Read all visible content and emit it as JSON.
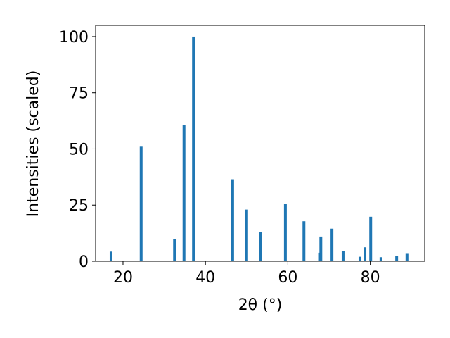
{
  "chart_data": {
    "type": "bar",
    "x_label": "2θ (°)",
    "y_label": "Intensities (scaled)",
    "x": [
      17.1,
      24.4,
      32.5,
      34.8,
      37.1,
      46.6,
      50.0,
      53.3,
      59.4,
      63.9,
      67.7,
      68.0,
      70.7,
      73.4,
      77.5,
      78.7,
      80.1,
      82.6,
      86.4,
      88.9
    ],
    "values": [
      4.3,
      51,
      10,
      60.5,
      100,
      36.5,
      23,
      13,
      25.5,
      17.8,
      3.8,
      11,
      14.5,
      4.7,
      2,
      6.2,
      19.8,
      1.8,
      2.5,
      3.3
    ],
    "color": "#1f77b4",
    "xlim": [
      13.35,
      93.2
    ],
    "xticks": [
      20,
      40,
      60,
      80
    ],
    "ylim": [
      0,
      105
    ],
    "yticks": [
      0,
      25,
      50,
      75,
      100
    ]
  }
}
